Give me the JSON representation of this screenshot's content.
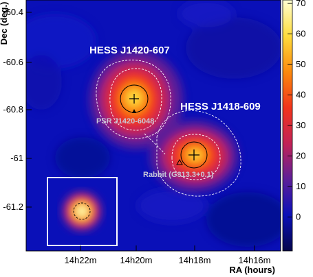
{
  "chart_data": {
    "type": "heatmap",
    "title": "",
    "xlabel": "RA (hours)",
    "ylabel": "Dec (deg.)",
    "x_ticks": [
      "14h22m",
      "14h20m",
      "14h18m",
      "14h16m"
    ],
    "y_ticks": [
      "-60.4",
      "-60.6",
      "-60.8",
      "-61",
      "-61.2"
    ],
    "colorbar": {
      "min": -10,
      "max": 70,
      "ticks": [
        "0",
        "10",
        "20",
        "30",
        "40",
        "50",
        "60",
        "70"
      ],
      "colors": [
        "#05064a",
        "#0a10b8",
        "#5d1f98",
        "#c22256",
        "#f2341b",
        "#fb8a0e",
        "#fedc3c",
        "#ffffd2"
      ]
    },
    "sources": [
      {
        "label": "HESS J1420-607",
        "ra_h": 14.335,
        "dec": -60.757,
        "peak": 62,
        "sigma_deg": 0.08
      },
      {
        "label": "HESS J1418-609",
        "ra_h": 14.303,
        "dec": -60.975,
        "peak": 58,
        "sigma_deg": 0.07
      }
    ],
    "annotations": [
      {
        "label": "PSR J1420-6048"
      },
      {
        "label": "Rabbit (G313.3+0.1)"
      }
    ],
    "inset": {
      "description": "point spread function",
      "peak": 66
    }
  }
}
